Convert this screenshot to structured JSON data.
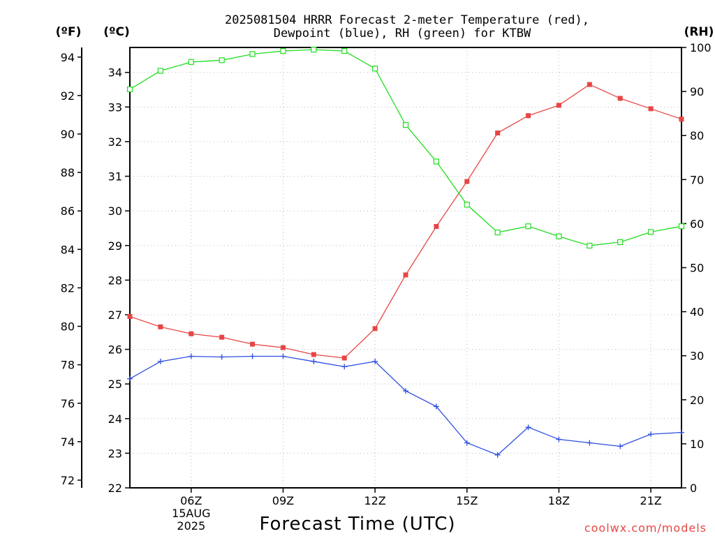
{
  "title_line1": "2025081504 HRRR Forecast 2-meter Temperature (red),",
  "title_line2": "Dewpoint (blue), RH (green) for KTBW",
  "credit": "coolwx.com/models",
  "chart_data": {
    "type": "line",
    "xlabel": "Forecast Time (UTC)",
    "x": [
      4,
      5,
      6,
      7,
      8,
      9,
      10,
      11,
      12,
      13,
      14,
      15,
      16,
      17,
      18,
      19,
      20,
      21,
      22
    ],
    "xlim": [
      4,
      22
    ],
    "x_ticks": [
      {
        "hour": 6,
        "label": "06Z",
        "date": "15AUG",
        "year": "2025"
      },
      {
        "hour": 9,
        "label": "09Z"
      },
      {
        "hour": 12,
        "label": "12Z"
      },
      {
        "hour": 15,
        "label": "15Z"
      },
      {
        "hour": 18,
        "label": "18Z"
      },
      {
        "hour": 21,
        "label": "21Z"
      }
    ],
    "axes": {
      "fahrenheit": {
        "label": "(ºF)",
        "range": [
          71.6,
          94.5
        ],
        "ticks": [
          72,
          74,
          76,
          78,
          80,
          82,
          84,
          86,
          88,
          90,
          92,
          94
        ]
      },
      "celsius": {
        "label": "(ºC)",
        "range": [
          22,
          34.72
        ],
        "ticks": [
          22,
          23,
          24,
          25,
          26,
          27,
          28,
          29,
          30,
          31,
          32,
          33,
          34
        ]
      },
      "rh": {
        "label": "(RH)",
        "range": [
          0,
          100
        ],
        "ticks": [
          0,
          10,
          20,
          30,
          40,
          50,
          60,
          70,
          80,
          90,
          100
        ]
      }
    },
    "grid": true,
    "series": [
      {
        "name": "Temperature",
        "axis": "celsius",
        "color": "#e84545",
        "marker": "filled-square",
        "values": [
          26.95,
          26.65,
          26.45,
          26.35,
          26.15,
          26.05,
          25.85,
          25.75,
          26.6,
          28.15,
          29.55,
          30.85,
          32.25,
          32.75,
          33.05,
          33.65,
          33.25,
          32.95,
          32.65
        ]
      },
      {
        "name": "Dewpoint",
        "axis": "celsius",
        "color": "#2e4ee0",
        "marker": "plus",
        "values": [
          25.15,
          25.65,
          25.8,
          25.78,
          25.8,
          25.8,
          25.65,
          25.5,
          25.65,
          24.8,
          24.35,
          23.3,
          22.95,
          23.75,
          23.4,
          23.3,
          23.2,
          23.55,
          23.6
        ]
      },
      {
        "name": "RH",
        "axis": "rh",
        "color": "#22dd22",
        "marker": "open-square",
        "values": [
          90.5,
          94.7,
          96.7,
          97.1,
          98.5,
          99.2,
          99.5,
          99.2,
          95.2,
          82.4,
          74.1,
          64.3,
          58.0,
          59.4,
          57.1,
          55.0,
          55.8,
          58.1,
          59.4
        ]
      }
    ]
  }
}
